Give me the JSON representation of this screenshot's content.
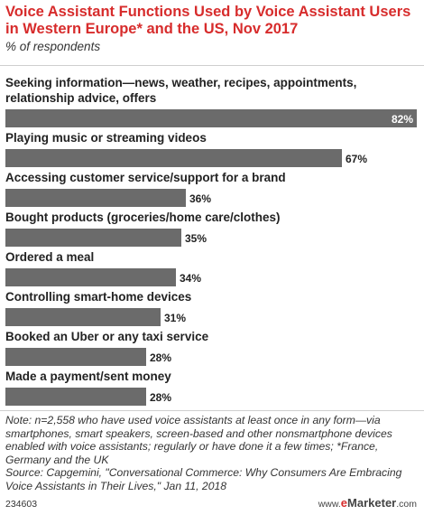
{
  "header": {
    "title": "Voice Assistant Functions Used by Voice Assistant Users in Western Europe* and the US, Nov 2017",
    "subtitle": "% of respondents"
  },
  "chart_data": {
    "type": "bar",
    "orientation": "horizontal",
    "title": "Voice Assistant Functions Used by Voice Assistant Users in Western Europe* and the US, Nov 2017",
    "subtitle": "% of respondents",
    "categories": [
      "Seeking information—news, weather, recipes, appointments, relationship advice, offers",
      "Playing music or streaming videos",
      "Accessing customer service/support for a brand",
      "Bought products (groceries/home care/clothes)",
      "Ordered a meal",
      "Controlling smart-home devices",
      "Booked an Uber or any taxi service",
      "Made a payment/sent money"
    ],
    "values": [
      82,
      67,
      36,
      35,
      34,
      31,
      28,
      28
    ],
    "value_labels": [
      "82%",
      "67%",
      "36%",
      "35%",
      "34%",
      "31%",
      "28%",
      "28%"
    ],
    "xlim": [
      0,
      82
    ],
    "bar_color": "#6b6b6b",
    "grid": false
  },
  "footer": {
    "note": "Note: n=2,558 who have used voice assistants at least once in any form—via smartphones, smart speakers, screen-based and other nonsmartphone devices enabled with voice assistants; regularly or have done it a few times; *France, Germany and the UK",
    "source": "Source: Capgemini, \"Conversational Commerce: Why Consumers Are Embracing Voice Assistants in Their Lives,\" Jan 11, 2018",
    "chart_id": "234603",
    "brand_prefix": "www.",
    "brand_e": "e",
    "brand_rest": "Marketer",
    "brand_suffix": ".com"
  },
  "colors": {
    "title": "#d72c2c",
    "bar": "#6b6b6b",
    "label_inside": "#ffffff",
    "label_outside": "#222222"
  }
}
